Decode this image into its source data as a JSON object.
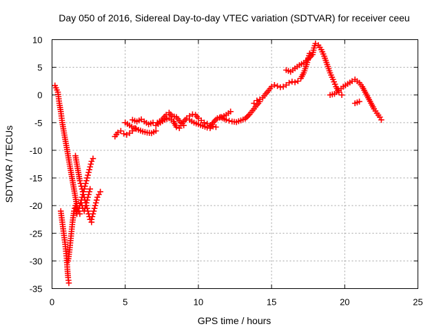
{
  "chart_data": {
    "type": "scatter",
    "title": "Day 050 of 2016, Sidereal Day-to-day VTEC variation (SDTVAR) for receiver ceeu",
    "xlabel": "GPS time / hours",
    "ylabel": "SDTVAR / TECUs",
    "xlim": [
      0,
      25
    ],
    "ylim": [
      -35,
      10
    ],
    "xticks": [
      "0",
      "5",
      "10",
      "15",
      "20",
      "25"
    ],
    "yticks": [
      "10",
      "5",
      "0",
      "-5",
      "-10",
      "-15",
      "-20",
      "-25",
      "-30",
      "-35"
    ],
    "grid": true,
    "marker": "+",
    "color": "#ff0000",
    "series": [
      {
        "name": "SDTVAR",
        "segments": [
          [
            [
              0.2,
              1.7
            ],
            [
              0.4,
              0.5
            ],
            [
              0.5,
              -1.5
            ],
            [
              0.6,
              -3.0
            ],
            [
              0.7,
              -5.0
            ],
            [
              0.8,
              -6.5
            ],
            [
              0.9,
              -8.0
            ],
            [
              1.0,
              -9.5
            ],
            [
              1.1,
              -11.0
            ],
            [
              1.2,
              -12.5
            ],
            [
              1.3,
              -14.0
            ],
            [
              1.4,
              -15.5
            ],
            [
              1.5,
              -17.0
            ],
            [
              1.6,
              -18.5
            ],
            [
              1.7,
              -20.0
            ],
            [
              1.8,
              -21.0
            ],
            [
              1.9,
              -21.5
            ]
          ],
          [
            [
              0.6,
              -21.0
            ],
            [
              0.7,
              -23.0
            ],
            [
              0.8,
              -25.0
            ],
            [
              0.9,
              -27.0
            ],
            [
              1.0,
              -29.5
            ],
            [
              1.05,
              -31.5
            ],
            [
              1.1,
              -33.0
            ],
            [
              1.15,
              -34.0
            ]
          ],
          [
            [
              1.1,
              -30.0
            ],
            [
              1.2,
              -28.0
            ],
            [
              1.3,
              -25.5
            ],
            [
              1.4,
              -23.0
            ],
            [
              1.5,
              -21.0
            ],
            [
              1.6,
              -20.0
            ],
            [
              1.7,
              -21.5
            ],
            [
              1.8,
              -21.0
            ]
          ],
          [
            [
              1.6,
              -11.0
            ],
            [
              1.7,
              -12.5
            ],
            [
              1.8,
              -14.0
            ],
            [
              1.9,
              -15.5
            ],
            [
              2.0,
              -16.5
            ],
            [
              2.1,
              -17.5
            ],
            [
              2.2,
              -18.5
            ],
            [
              2.3,
              -19.5
            ],
            [
              2.4,
              -20.5
            ],
            [
              2.5,
              -21.5
            ],
            [
              2.6,
              -22.5
            ],
            [
              2.7,
              -23.0
            ]
          ],
          [
            [
              1.8,
              -21.0
            ],
            [
              1.9,
              -20.0
            ],
            [
              2.0,
              -19.0
            ],
            [
              2.1,
              -18.0
            ],
            [
              2.2,
              -17.0
            ],
            [
              2.3,
              -16.0
            ],
            [
              2.4,
              -15.0
            ],
            [
              2.5,
              -14.0
            ],
            [
              2.6,
              -13.0
            ],
            [
              2.7,
              -12.0
            ],
            [
              2.8,
              -11.5
            ]
          ],
          [
            [
              2.0,
              -19.5
            ],
            [
              2.1,
              -20.5
            ],
            [
              2.2,
              -21.0
            ],
            [
              2.3,
              -20.0
            ],
            [
              2.4,
              -19.0
            ],
            [
              2.5,
              -18.0
            ],
            [
              2.6,
              -17.0
            ]
          ],
          [
            [
              2.7,
              -22.5
            ],
            [
              2.8,
              -21.5
            ],
            [
              2.9,
              -20.5
            ],
            [
              3.0,
              -19.5
            ],
            [
              3.1,
              -18.5
            ],
            [
              3.2,
              -18.0
            ],
            [
              3.3,
              -17.5
            ]
          ],
          [
            [
              4.3,
              -7.5
            ],
            [
              4.5,
              -6.8
            ],
            [
              4.7,
              -6.5
            ],
            [
              4.9,
              -7.0
            ],
            [
              5.1,
              -7.2
            ],
            [
              5.3,
              -6.9
            ],
            [
              5.5,
              -6.5
            ],
            [
              5.7,
              -6.0
            ]
          ],
          [
            [
              5.0,
              -5.0
            ],
            [
              5.3,
              -5.5
            ],
            [
              5.6,
              -6.0
            ],
            [
              5.9,
              -6.3
            ],
            [
              6.2,
              -6.6
            ],
            [
              6.5,
              -6.8
            ],
            [
              6.8,
              -6.9
            ],
            [
              7.1,
              -6.5
            ]
          ],
          [
            [
              5.5,
              -4.5
            ],
            [
              5.8,
              -4.8
            ],
            [
              6.1,
              -4.4
            ],
            [
              6.3,
              -4.8
            ],
            [
              6.6,
              -5.3
            ],
            [
              6.9,
              -5.0
            ]
          ],
          [
            [
              7.2,
              -5.0
            ],
            [
              7.5,
              -4.5
            ],
            [
              7.8,
              -3.6
            ],
            [
              8.0,
              -3.2
            ],
            [
              8.2,
              -3.8
            ],
            [
              8.5,
              -4.0
            ],
            [
              8.8,
              -5.0
            ],
            [
              9.0,
              -5.5
            ]
          ],
          [
            [
              7.1,
              -5.5
            ],
            [
              7.4,
              -5.0
            ],
            [
              7.7,
              -4.5
            ],
            [
              8.0,
              -4.2
            ],
            [
              8.3,
              -4.8
            ],
            [
              8.5,
              -5.8
            ],
            [
              8.7,
              -6.0
            ]
          ],
          [
            [
              8.8,
              -5.5
            ],
            [
              9.0,
              -4.8
            ],
            [
              9.2,
              -4.2
            ],
            [
              9.4,
              -3.8
            ],
            [
              9.6,
              -3.5
            ],
            [
              9.8,
              -3.6
            ],
            [
              10.0,
              -4.2
            ],
            [
              10.2,
              -4.6
            ],
            [
              10.4,
              -5.0
            ],
            [
              10.6,
              -5.2
            ],
            [
              10.8,
              -5.5
            ],
            [
              11.0,
              -5.7
            ],
            [
              11.2,
              -5.8
            ]
          ],
          [
            [
              9.4,
              -4.5
            ],
            [
              9.7,
              -5.0
            ],
            [
              10.0,
              -5.3
            ],
            [
              10.3,
              -5.6
            ],
            [
              10.6,
              -5.9
            ],
            [
              10.8,
              -6.0
            ],
            [
              11.0,
              -5.0
            ],
            [
              11.3,
              -4.2
            ],
            [
              11.6,
              -4.0
            ],
            [
              11.9,
              -3.6
            ],
            [
              12.2,
              -3.0
            ]
          ],
          [
            [
              11.5,
              -4.0
            ],
            [
              11.9,
              -4.5
            ],
            [
              12.3,
              -4.8
            ],
            [
              12.6,
              -4.9
            ],
            [
              12.9,
              -4.6
            ],
            [
              13.2,
              -4.3
            ],
            [
              13.5,
              -3.5
            ],
            [
              13.8,
              -2.5
            ],
            [
              14.0,
              -1.8
            ],
            [
              14.2,
              -1.2
            ]
          ],
          [
            [
              13.8,
              -1.5
            ],
            [
              14.0,
              -1.0
            ],
            [
              14.2,
              -0.8
            ],
            [
              14.4,
              -0.5
            ],
            [
              14.6,
              0.2
            ],
            [
              14.8,
              0.8
            ],
            [
              15.0,
              1.5
            ],
            [
              15.2,
              1.8
            ],
            [
              15.4,
              1.6
            ],
            [
              15.6,
              1.4
            ],
            [
              15.8,
              1.5
            ],
            [
              16.0,
              1.8
            ],
            [
              16.2,
              2.2
            ],
            [
              16.4,
              2.4
            ],
            [
              16.6,
              2.3
            ],
            [
              16.8,
              2.5
            ],
            [
              17.0,
              3.0
            ],
            [
              17.2,
              4.0
            ],
            [
              17.4,
              5.5
            ],
            [
              17.6,
              7.5
            ]
          ],
          [
            [
              16.0,
              4.5
            ],
            [
              16.3,
              4.2
            ],
            [
              16.6,
              4.8
            ],
            [
              16.9,
              5.4
            ],
            [
              17.2,
              5.8
            ],
            [
              17.5,
              6.5
            ],
            [
              17.8,
              7.3
            ],
            [
              17.9,
              8.5
            ],
            [
              18.0,
              9.3
            ],
            [
              18.2,
              9.0
            ],
            [
              18.4,
              8.2
            ],
            [
              18.6,
              7.0
            ],
            [
              18.8,
              5.5
            ],
            [
              19.0,
              4.0
            ],
            [
              19.2,
              2.8
            ],
            [
              19.4,
              1.5
            ],
            [
              19.6,
              0.5
            ],
            [
              19.8,
              0.0
            ]
          ],
          [
            [
              19.0,
              0.0
            ],
            [
              19.3,
              0.2
            ],
            [
              19.6,
              0.8
            ],
            [
              19.9,
              1.5
            ],
            [
              20.2,
              2.0
            ],
            [
              20.5,
              2.5
            ],
            [
              20.7,
              2.8
            ],
            [
              21.0,
              2.2
            ],
            [
              21.2,
              1.5
            ],
            [
              21.4,
              0.5
            ],
            [
              21.6,
              -0.5
            ],
            [
              21.8,
              -1.5
            ],
            [
              22.0,
              -2.5
            ],
            [
              22.2,
              -3.3
            ],
            [
              22.4,
              -4.0
            ],
            [
              22.5,
              -4.5
            ]
          ],
          [
            [
              20.7,
              -1.5
            ],
            [
              21.0,
              -1.2
            ]
          ]
        ]
      }
    ]
  }
}
